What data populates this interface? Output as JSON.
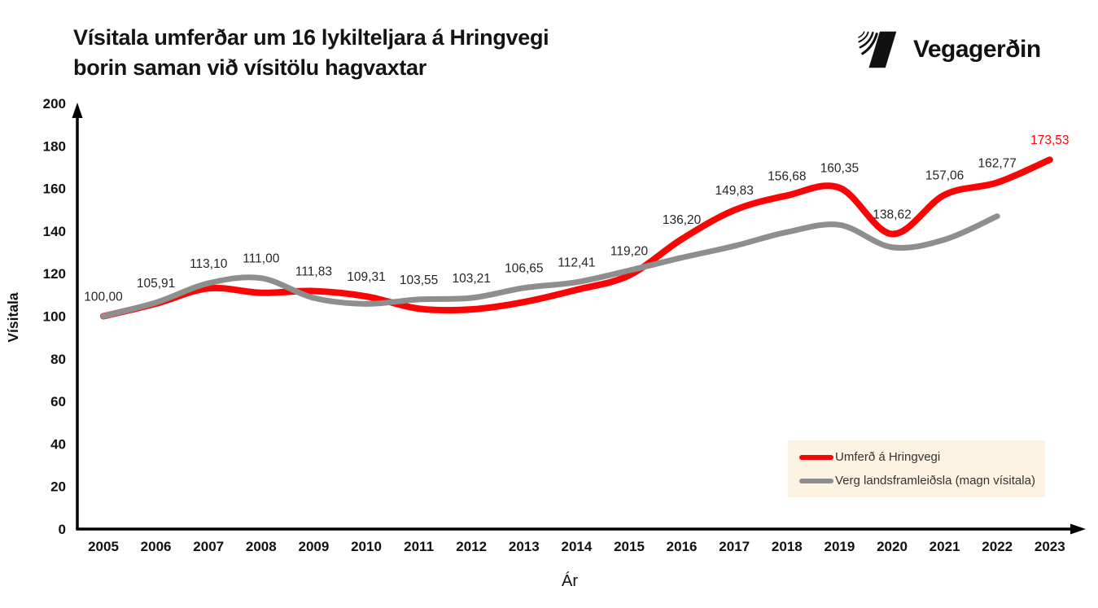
{
  "header": {
    "logo_text": "Vegagerðin"
  },
  "chart_data": {
    "type": "line",
    "title": "Vísitala umferðar um 16 lykilteljara á Hringvegi borin saman við vísitölu hagvaxtar",
    "title_lines": [
      "Vísitala umferðar um 16 lykilteljara á Hringvegi",
      "borin saman við vísitölu hagvaxtar"
    ],
    "xlabel": "Ár",
    "ylabel": "Vísitala",
    "ylim": [
      0,
      200
    ],
    "ytick_step": 20,
    "yticks": [
      0,
      20,
      40,
      60,
      80,
      100,
      120,
      140,
      160,
      180,
      200
    ],
    "x": [
      2005,
      2006,
      2007,
      2008,
      2009,
      2010,
      2011,
      2012,
      2013,
      2014,
      2015,
      2016,
      2017,
      2018,
      2019,
      2020,
      2021,
      2022,
      2023
    ],
    "series": [
      {
        "name": "Umferð á Hringvegi",
        "color": "#f90505",
        "line_width": 8,
        "values": [
          100.0,
          105.91,
          113.1,
          111.0,
          111.83,
          109.31,
          103.55,
          103.21,
          106.65,
          112.41,
          119.2,
          136.2,
          149.83,
          156.68,
          160.35,
          138.62,
          157.06,
          162.77,
          173.53
        ],
        "data_labels": [
          "100,00",
          "105,91",
          "113,10",
          "111,00",
          "111,83",
          "109,31",
          "103,55",
          "103,21",
          "106,65",
          "112,41",
          "119,20",
          "136,20",
          "149,83",
          "156,68",
          "160,35",
          "138,62",
          "157,06",
          "162,77",
          "173,53"
        ]
      },
      {
        "name": "Verg landsframleiðsla (magn vísitala)",
        "color": "#8e8e8e",
        "line_width": 7,
        "values": [
          100.0,
          106.4,
          115.5,
          117.9,
          108.6,
          105.8,
          107.9,
          108.6,
          113.3,
          116.0,
          121.5,
          127.5,
          133.0,
          139.5,
          142.9,
          132.4,
          136.0,
          147.0,
          null
        ]
      }
    ],
    "grid": false,
    "legend_position": "inside-bottom-right",
    "legend_bg": "#fcf3e2",
    "last_label_color": "#f90505",
    "axis_color": "#000000",
    "data_label_color": "#252525"
  }
}
